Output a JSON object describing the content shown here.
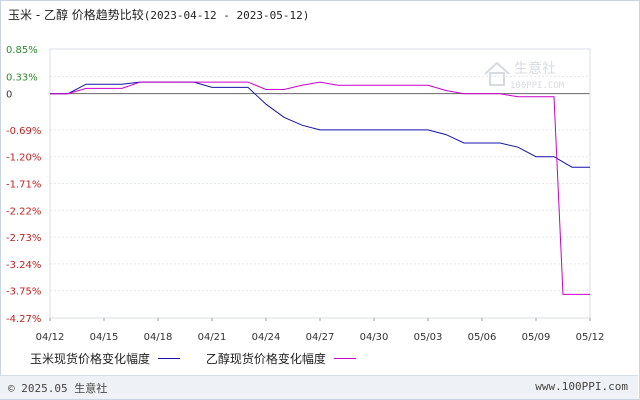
{
  "header": {
    "title": "玉米 - 乙醇 价格趋势比较",
    "date_range": "(2023-04-12 - 2023-05-12)"
  },
  "chart_data": {
    "type": "line",
    "title": "玉米 - 乙醇 价格趋势比较",
    "xlabel": "",
    "ylabel": "",
    "y_ticks": [
      "0.85%",
      "0.33%",
      "0",
      "-0.69%",
      "-1.20%",
      "-1.71%",
      "-2.22%",
      "-2.73%",
      "-3.24%",
      "-3.75%",
      "-4.27%"
    ],
    "y_tick_values": [
      0.85,
      0.33,
      0,
      -0.69,
      -1.2,
      -1.71,
      -2.22,
      -2.73,
      -3.24,
      -3.75,
      -4.27
    ],
    "ylim": [
      -4.27,
      0.85
    ],
    "x_ticks": [
      "04/12",
      "04/15",
      "04/18",
      "04/21",
      "04/24",
      "04/27",
      "04/30",
      "05/03",
      "05/06",
      "05/09",
      "05/12"
    ],
    "x_tick_days": [
      0,
      3,
      6,
      9,
      12,
      15,
      18,
      21,
      24,
      27,
      30
    ],
    "xlim": [
      0,
      30
    ],
    "grid": "horizontal",
    "legend_position": "bottom",
    "series": [
      {
        "name": "玉米现货价格变化幅度",
        "color": "#1414a8",
        "points": [
          [
            0,
            0.0
          ],
          [
            1,
            0.0
          ],
          [
            2,
            0.18
          ],
          [
            3,
            0.18
          ],
          [
            4,
            0.18
          ],
          [
            5,
            0.22
          ],
          [
            6,
            0.22
          ],
          [
            7,
            0.22
          ],
          [
            8,
            0.22
          ],
          [
            9,
            0.12
          ],
          [
            10,
            0.12
          ],
          [
            11,
            0.12
          ],
          [
            12,
            -0.2
          ],
          [
            13,
            -0.45
          ],
          [
            14,
            -0.6
          ],
          [
            15,
            -0.69
          ],
          [
            16,
            -0.69
          ],
          [
            17,
            -0.69
          ],
          [
            18,
            -0.69
          ],
          [
            19,
            -0.69
          ],
          [
            20,
            -0.69
          ],
          [
            21,
            -0.69
          ],
          [
            22,
            -0.78
          ],
          [
            23,
            -0.94
          ],
          [
            24,
            -0.94
          ],
          [
            25,
            -0.94
          ],
          [
            26,
            -1.02
          ],
          [
            27,
            -1.2
          ],
          [
            28,
            -1.2
          ],
          [
            29,
            -1.4
          ],
          [
            30,
            -1.4
          ]
        ]
      },
      {
        "name": "乙醇现货价格变化幅度",
        "color": "#cc00cc",
        "points": [
          [
            0,
            0.0
          ],
          [
            1,
            0.0
          ],
          [
            2,
            0.1
          ],
          [
            3,
            0.1
          ],
          [
            4,
            0.1
          ],
          [
            5,
            0.22
          ],
          [
            6,
            0.22
          ],
          [
            7,
            0.22
          ],
          [
            8,
            0.22
          ],
          [
            9,
            0.22
          ],
          [
            10,
            0.22
          ],
          [
            11,
            0.22
          ],
          [
            12,
            0.08
          ],
          [
            13,
            0.08
          ],
          [
            14,
            0.16
          ],
          [
            15,
            0.22
          ],
          [
            16,
            0.16
          ],
          [
            17,
            0.16
          ],
          [
            18,
            0.16
          ],
          [
            19,
            0.16
          ],
          [
            20,
            0.16
          ],
          [
            21,
            0.16
          ],
          [
            22,
            0.06
          ],
          [
            23,
            0.0
          ],
          [
            24,
            0.0
          ],
          [
            25,
            0.0
          ],
          [
            26,
            -0.06
          ],
          [
            27,
            -0.06
          ],
          [
            28,
            -0.06
          ],
          [
            28.5,
            -3.82
          ],
          [
            30,
            -3.82
          ]
        ]
      }
    ]
  },
  "legend": {
    "item1": "玉米现货价格变化幅度",
    "item2": "乙醇现货价格变化幅度"
  },
  "watermark": {
    "brand": "生意社",
    "url": "100PPI.COM"
  },
  "footer": {
    "copyright": "© 2025.05 生意社",
    "site": "www.100PPI.com"
  }
}
